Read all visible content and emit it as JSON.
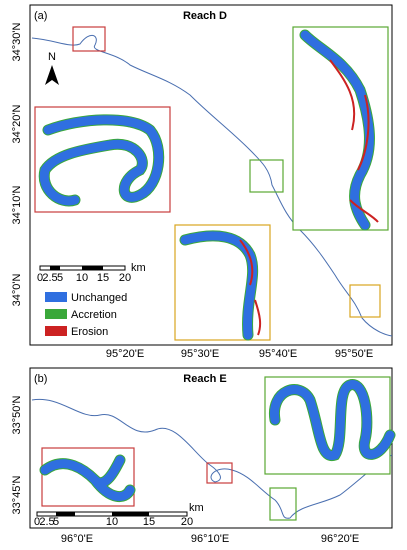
{
  "panel_a": {
    "label": "(a)",
    "title": "Reach D",
    "north": "N",
    "lat_labels": [
      "34°30'N",
      "34°20'N",
      "34°10'N",
      "34°0'N"
    ],
    "lon_labels": [
      "95°20'E",
      "95°30'E",
      "95°40'E",
      "95°50'E"
    ],
    "scale": {
      "ticks": [
        "0",
        "2.5",
        "5",
        "10",
        "15",
        "20"
      ],
      "unit": "km"
    },
    "legend": [
      "Unchanged",
      "Accretion",
      "Erosion"
    ]
  },
  "panel_b": {
    "label": "(b)",
    "title": "Reach E",
    "lat_labels": [
      "33°50'N",
      "33°45'N"
    ],
    "lon_labels": [
      "96°0'E",
      "96°10'E",
      "96°20'E"
    ],
    "scale": {
      "ticks": [
        "0",
        "2.5",
        "5",
        "10",
        "15",
        "20"
      ],
      "unit": "km"
    }
  }
}
